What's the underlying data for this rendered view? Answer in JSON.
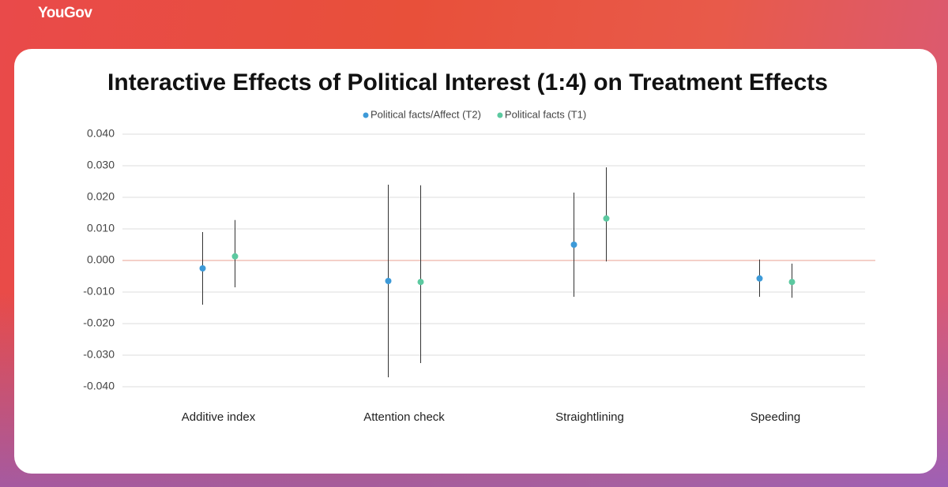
{
  "chart_data": {
    "type": "errorbar",
    "title": "Interactive Effects of Political Interest (1:4) on Treatment Effects",
    "categories": [
      "Additive index",
      "Attention check",
      "Straightlining",
      "Speeding"
    ],
    "series": [
      {
        "name": "Political facts/Affect (T2)",
        "color": "#3d9ad8",
        "values": [
          -0.0025,
          -0.0065,
          0.005,
          -0.0057
        ],
        "lower": [
          -0.014,
          -0.037,
          -0.0115,
          -0.0115
        ],
        "upper": [
          0.009,
          0.024,
          0.0215,
          0.0003
        ]
      },
      {
        "name": "Political facts (T1)",
        "color": "#5cc9a0",
        "values": [
          0.0013,
          -0.0068,
          0.0133,
          -0.0068
        ],
        "lower": [
          -0.0085,
          -0.0325,
          -0.0003,
          -0.0118
        ],
        "upper": [
          0.0128,
          0.0238,
          0.0295,
          -0.001
        ]
      }
    ],
    "ylim": [
      -0.04,
      0.04
    ],
    "yticks": [
      {
        "value": -0.04,
        "label": "-0.040"
      },
      {
        "value": -0.03,
        "label": "-0.030"
      },
      {
        "value": -0.02,
        "label": "-0.020"
      },
      {
        "value": -0.01,
        "label": "-0.010"
      },
      {
        "value": 0,
        "label": "0.000"
      },
      {
        "value": 0.01,
        "label": "0.010"
      },
      {
        "value": 0.02,
        "label": "0.020"
      },
      {
        "value": 0.03,
        "label": "0.030"
      },
      {
        "value": 0.04,
        "label": "0.040"
      }
    ],
    "grid": true
  }
}
